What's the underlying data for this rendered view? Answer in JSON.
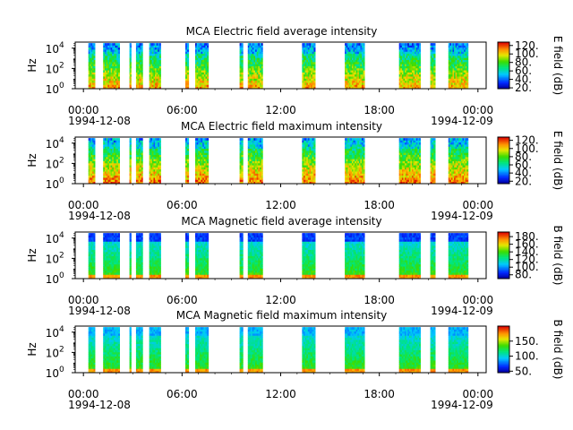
{
  "chart_data": [
    {
      "type": "heatmap",
      "title": "MCA  Electric field average intensity",
      "ylabel": "Hz",
      "yticks": [
        {
          "exp": "0",
          "value": 1
        },
        {
          "exp": "2",
          "value": 100
        },
        {
          "exp": "4",
          "value": 10000
        }
      ],
      "ylim_log10": [
        0,
        4.6
      ],
      "xticks": [
        "00:00",
        "06:00",
        "12:00",
        "18:00",
        "00:00"
      ],
      "xtick_hours": [
        0,
        6,
        12,
        18,
        24
      ],
      "xlim_hours": [
        -0.5,
        24.5
      ],
      "date_start": "1994-12-08",
      "date_end": "1994-12-09",
      "colorbar": {
        "label": "E field (dB)",
        "ticks": [
          "20.",
          "40.",
          "60.",
          "80.",
          "100.",
          "120."
        ],
        "tick_values": [
          20,
          40,
          60,
          80,
          100,
          120
        ],
        "range": [
          18,
          128
        ]
      },
      "colormap": "rainbow",
      "style": "electric",
      "segments_hours": [
        [
          0.3,
          0.7
        ],
        [
          1.2,
          2.2
        ],
        [
          2.8,
          2.9
        ],
        [
          3.2,
          3.6
        ],
        [
          4.0,
          4.7
        ],
        [
          6.2,
          6.4
        ],
        [
          6.8,
          7.6
        ],
        [
          9.5,
          9.7
        ],
        [
          10.0,
          10.9
        ],
        [
          13.3,
          14.1
        ],
        [
          15.9,
          17.1
        ],
        [
          19.2,
          20.5
        ],
        [
          21.1,
          21.4
        ],
        [
          22.2,
          23.4
        ]
      ],
      "value_range": [
        20,
        100
      ]
    },
    {
      "type": "heatmap",
      "title": "MCA  Electric field maximum intensity",
      "ylabel": "Hz",
      "yticks": [
        {
          "exp": "0",
          "value": 1
        },
        {
          "exp": "2",
          "value": 100
        },
        {
          "exp": "4",
          "value": 10000
        }
      ],
      "ylim_log10": [
        0,
        4.6
      ],
      "xticks": [
        "00:00",
        "06:00",
        "12:00",
        "18:00",
        "00:00"
      ],
      "xtick_hours": [
        0,
        6,
        12,
        18,
        24
      ],
      "xlim_hours": [
        -0.5,
        24.5
      ],
      "date_start": "1994-12-08",
      "date_end": "1994-12-09",
      "colorbar": {
        "label": "E field (dB)",
        "ticks": [
          "20.",
          "40.",
          "60.",
          "80.",
          "100.",
          "120."
        ],
        "tick_values": [
          20,
          40,
          60,
          80,
          100,
          120
        ],
        "range": [
          14,
          128
        ]
      },
      "colormap": "rainbow",
      "style": "electric",
      "segments_hours": [
        [
          0.3,
          0.7
        ],
        [
          1.2,
          2.2
        ],
        [
          2.8,
          2.9
        ],
        [
          3.2,
          3.6
        ],
        [
          4.0,
          4.7
        ],
        [
          6.2,
          6.4
        ],
        [
          6.8,
          7.6
        ],
        [
          9.5,
          9.7
        ],
        [
          10.0,
          10.9
        ],
        [
          13.3,
          14.1
        ],
        [
          15.9,
          17.1
        ],
        [
          19.2,
          20.5
        ],
        [
          21.1,
          21.4
        ],
        [
          22.2,
          23.4
        ]
      ],
      "value_range": [
        30,
        110
      ]
    },
    {
      "type": "heatmap",
      "title": "MCA  Magnetic field average intensity",
      "ylabel": "Hz",
      "yticks": [
        {
          "exp": "0",
          "value": 1
        },
        {
          "exp": "2",
          "value": 100
        },
        {
          "exp": "4",
          "value": 10000
        }
      ],
      "ylim_log10": [
        0,
        4.6
      ],
      "xticks": [
        "00:00",
        "06:00",
        "12:00",
        "18:00",
        "00:00"
      ],
      "xtick_hours": [
        0,
        6,
        12,
        18,
        24
      ],
      "xlim_hours": [
        -0.5,
        24.5
      ],
      "date_start": "1994-12-08",
      "date_end": "1994-12-09",
      "colorbar": {
        "label": "B field (dB)",
        "ticks": [
          "80.",
          "100.",
          "120.",
          "140.",
          "160.",
          "180."
        ],
        "tick_values": [
          80,
          100,
          120,
          140,
          160,
          180
        ],
        "range": [
          70,
          192
        ]
      },
      "colormap": "rainbow",
      "style": "magnetic",
      "segments_hours": [
        [
          0.3,
          0.7
        ],
        [
          1.2,
          2.2
        ],
        [
          2.8,
          2.9
        ],
        [
          3.2,
          3.6
        ],
        [
          4.0,
          4.7
        ],
        [
          6.2,
          6.4
        ],
        [
          6.8,
          7.6
        ],
        [
          9.5,
          9.7
        ],
        [
          10.0,
          10.9
        ],
        [
          13.3,
          14.1
        ],
        [
          15.9,
          17.1
        ],
        [
          19.2,
          20.5
        ],
        [
          21.1,
          21.4
        ],
        [
          22.2,
          23.4
        ]
      ],
      "value_range": [
        75,
        170
      ]
    },
    {
      "type": "heatmap",
      "title": "MCA  Magnetic field maximum intensity",
      "ylabel": "Hz",
      "yticks": [
        {
          "exp": "0",
          "value": 1
        },
        {
          "exp": "2",
          "value": 100
        },
        {
          "exp": "4",
          "value": 10000
        }
      ],
      "ylim_log10": [
        0,
        4.6
      ],
      "xticks": [
        "00:00",
        "06:00",
        "12:00",
        "18:00",
        "00:00"
      ],
      "xtick_hours": [
        0,
        6,
        12,
        18,
        24
      ],
      "xlim_hours": [
        -0.5,
        24.5
      ],
      "date_start": "1994-12-08",
      "date_end": "1994-12-09",
      "colorbar": {
        "label": "B field (dB)",
        "ticks": [
          "50.",
          "100.",
          "150."
        ],
        "tick_values": [
          50,
          100,
          150
        ],
        "range": [
          45,
          200
        ]
      },
      "colormap": "rainbow",
      "style": "magnetic",
      "segments_hours": [
        [
          0.3,
          0.7
        ],
        [
          1.2,
          2.2
        ],
        [
          2.8,
          2.9
        ],
        [
          3.2,
          3.6
        ],
        [
          4.0,
          4.7
        ],
        [
          6.2,
          6.4
        ],
        [
          6.8,
          7.6
        ],
        [
          9.5,
          9.7
        ],
        [
          10.0,
          10.9
        ],
        [
          13.3,
          14.1
        ],
        [
          15.9,
          17.1
        ],
        [
          19.2,
          20.5
        ],
        [
          21.1,
          21.4
        ],
        [
          22.2,
          23.4
        ]
      ],
      "value_range": [
        60,
        190
      ]
    }
  ]
}
